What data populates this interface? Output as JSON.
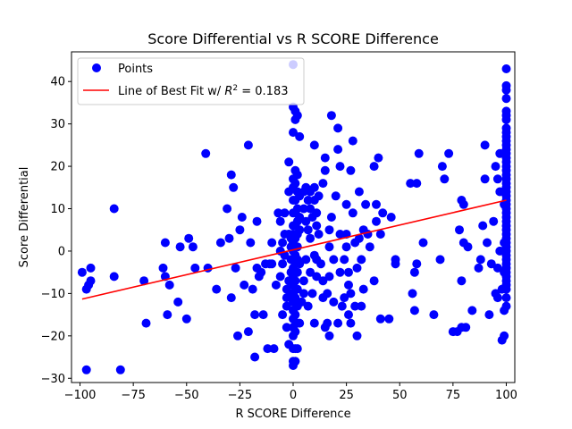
{
  "chart_data": {
    "type": "scatter",
    "title": "Score Differential vs R SCORE Difference",
    "xlabel": "R SCORE Difference",
    "ylabel": "Score Differential",
    "xlim": [
      -104,
      104
    ],
    "ylim": [
      -31,
      47
    ],
    "xticks": [
      -100,
      -75,
      -50,
      -25,
      0,
      25,
      50,
      75,
      100
    ],
    "yticks": [
      -30,
      -20,
      -10,
      0,
      10,
      20,
      30,
      40
    ],
    "grid": false,
    "legend_position": "upper-left",
    "points_color": "#0000ff",
    "fit_color": "#ff0000",
    "legend": {
      "points_label": "Points",
      "fit_prefix": "Line of Best Fit w/ ",
      "fit_r2": "R",
      "fit_suffix": " = 0.183"
    },
    "fit_line": {
      "x": [
        -99,
        100
      ],
      "y": [
        -11.3,
        12
      ]
    },
    "series": [
      {
        "name": "Points",
        "points": [
          [
            -99,
            -5
          ],
          [
            -97,
            -28
          ],
          [
            -97,
            -9
          ],
          [
            -96,
            -8
          ],
          [
            -95,
            -7
          ],
          [
            -95,
            -4
          ],
          [
            -84,
            10
          ],
          [
            -84,
            -6
          ],
          [
            -81,
            -28
          ],
          [
            -70,
            -7
          ],
          [
            -69,
            -17
          ],
          [
            -61,
            -4
          ],
          [
            -60,
            2
          ],
          [
            -60,
            -6
          ],
          [
            -59,
            -15
          ],
          [
            -58,
            -8
          ],
          [
            -54,
            -12
          ],
          [
            -53,
            1
          ],
          [
            -50,
            -16
          ],
          [
            -49,
            3
          ],
          [
            -47,
            1
          ],
          [
            -46,
            -4
          ],
          [
            -41,
            23
          ],
          [
            -40,
            -4
          ],
          [
            -36,
            -9
          ],
          [
            -34,
            2
          ],
          [
            -31,
            10
          ],
          [
            -30,
            3
          ],
          [
            -29,
            -11
          ],
          [
            -29,
            18
          ],
          [
            -28,
            15
          ],
          [
            -27,
            -4
          ],
          [
            -26,
            -20
          ],
          [
            -25,
            5
          ],
          [
            -24,
            8
          ],
          [
            -23,
            -8
          ],
          [
            -21,
            25
          ],
          [
            -21,
            -19
          ],
          [
            -20,
            2
          ],
          [
            -19,
            -9
          ],
          [
            -18,
            -15
          ],
          [
            -18,
            -25
          ],
          [
            -17,
            7
          ],
          [
            -17,
            -4
          ],
          [
            -16,
            -6
          ],
          [
            -15,
            -5
          ],
          [
            -14,
            -15
          ],
          [
            -13,
            -3
          ],
          [
            -12,
            -23
          ],
          [
            -11,
            -3
          ],
          [
            -10,
            -3
          ],
          [
            -10,
            2
          ],
          [
            -9,
            -23
          ],
          [
            -8,
            -8
          ],
          [
            -7,
            9
          ],
          [
            -6,
            0
          ],
          [
            -6,
            -6
          ],
          [
            -6,
            7
          ],
          [
            -5,
            -15
          ],
          [
            -5,
            2
          ],
          [
            -5,
            -3
          ],
          [
            -4,
            9
          ],
          [
            -4,
            -1
          ],
          [
            -4,
            4
          ],
          [
            -3,
            -9
          ],
          [
            -3,
            -11
          ],
          [
            -3,
            -13
          ],
          [
            -3,
            -18
          ],
          [
            -2,
            21
          ],
          [
            -2,
            14
          ],
          [
            -2,
            4
          ],
          [
            -2,
            -7
          ],
          [
            -2,
            -22
          ],
          [
            -1,
            3
          ],
          [
            -1,
            1
          ],
          [
            -1,
            -2
          ],
          [
            -1,
            -5
          ],
          [
            -1,
            -10
          ],
          [
            0,
            44
          ],
          [
            0,
            34
          ],
          [
            0,
            28
          ],
          [
            0,
            17
          ],
          [
            0,
            15
          ],
          [
            0,
            12
          ],
          [
            0,
            9
          ],
          [
            0,
            6
          ],
          [
            0,
            4
          ],
          [
            0,
            2
          ],
          [
            0,
            0
          ],
          [
            0,
            -2
          ],
          [
            0,
            -4
          ],
          [
            0,
            -6
          ],
          [
            0,
            -8
          ],
          [
            0,
            -10
          ],
          [
            0,
            -12
          ],
          [
            0,
            -14
          ],
          [
            0,
            -16
          ],
          [
            0,
            -18
          ],
          [
            0,
            -20
          ],
          [
            0,
            -23
          ],
          [
            0,
            -26
          ],
          [
            0,
            -27
          ],
          [
            1,
            33
          ],
          [
            1,
            31
          ],
          [
            1,
            19
          ],
          [
            1,
            16
          ],
          [
            1,
            12
          ],
          [
            1,
            9
          ],
          [
            1,
            6
          ],
          [
            1,
            3
          ],
          [
            1,
            -1
          ],
          [
            1,
            -3
          ],
          [
            1,
            -7
          ],
          [
            1,
            -11
          ],
          [
            1,
            -15
          ],
          [
            1,
            -19
          ],
          [
            1,
            -23
          ],
          [
            1,
            -26
          ],
          [
            2,
            32
          ],
          [
            2,
            18
          ],
          [
            2,
            14
          ],
          [
            2,
            10
          ],
          [
            2,
            7
          ],
          [
            2,
            4
          ],
          [
            2,
            1
          ],
          [
            2,
            -2
          ],
          [
            2,
            -5
          ],
          [
            2,
            -9
          ],
          [
            2,
            -13
          ],
          [
            2,
            -17
          ],
          [
            2,
            -23
          ],
          [
            3,
            27
          ],
          [
            3,
            13
          ],
          [
            3,
            8
          ],
          [
            3,
            5
          ],
          [
            3,
            -3
          ],
          [
            3,
            -17
          ],
          [
            4,
            -12
          ],
          [
            5,
            -10
          ],
          [
            5,
            10
          ],
          [
            5,
            14
          ],
          [
            5,
            -7
          ],
          [
            6,
            7
          ],
          [
            6,
            15
          ],
          [
            6,
            -2
          ],
          [
            7,
            5
          ],
          [
            7,
            12
          ],
          [
            7,
            -13
          ],
          [
            8,
            10
          ],
          [
            8,
            14
          ],
          [
            8,
            -5
          ],
          [
            8,
            3
          ],
          [
            9,
            8
          ],
          [
            9,
            -10
          ],
          [
            10,
            25
          ],
          [
            10,
            15
          ],
          [
            10,
            12
          ],
          [
            10,
            -1
          ],
          [
            10,
            -17
          ],
          [
            11,
            6
          ],
          [
            11,
            9
          ],
          [
            11,
            -2
          ],
          [
            11,
            -6
          ],
          [
            12,
            4
          ],
          [
            12,
            13
          ],
          [
            13,
            -3
          ],
          [
            14,
            16
          ],
          [
            14,
            -7
          ],
          [
            14,
            -11
          ],
          [
            15,
            -18
          ],
          [
            15,
            19
          ],
          [
            15,
            22
          ],
          [
            16,
            -17
          ],
          [
            16,
            -10
          ],
          [
            17,
            -6
          ],
          [
            17,
            -20
          ],
          [
            17,
            1
          ],
          [
            17,
            5
          ],
          [
            18,
            32
          ],
          [
            18,
            8
          ],
          [
            19,
            -12
          ],
          [
            19,
            -2
          ],
          [
            20,
            13
          ],
          [
            21,
            -17
          ],
          [
            21,
            24
          ],
          [
            21,
            29
          ],
          [
            22,
            20
          ],
          [
            22,
            4
          ],
          [
            22,
            -5
          ],
          [
            23,
            -13
          ],
          [
            24,
            -11
          ],
          [
            24,
            -2
          ],
          [
            25,
            11
          ],
          [
            25,
            4
          ],
          [
            25,
            1
          ],
          [
            26,
            -5
          ],
          [
            26,
            -8
          ],
          [
            26,
            -15
          ],
          [
            27,
            19
          ],
          [
            27,
            -10
          ],
          [
            27,
            -17
          ],
          [
            28,
            9
          ],
          [
            28,
            26
          ],
          [
            29,
            2
          ],
          [
            29,
            -13
          ],
          [
            30,
            -20
          ],
          [
            30,
            -4
          ],
          [
            31,
            14
          ],
          [
            31,
            3
          ],
          [
            32,
            -13
          ],
          [
            32,
            -2
          ],
          [
            33,
            -9
          ],
          [
            33,
            5
          ],
          [
            34,
            11
          ],
          [
            35,
            4
          ],
          [
            36,
            1
          ],
          [
            38,
            -7
          ],
          [
            38,
            20
          ],
          [
            39,
            11
          ],
          [
            39,
            7
          ],
          [
            40,
            22
          ],
          [
            41,
            4
          ],
          [
            41,
            -16
          ],
          [
            42,
            9
          ],
          [
            45,
            -16
          ],
          [
            46,
            8
          ],
          [
            48,
            -3
          ],
          [
            48,
            -2
          ],
          [
            55,
            16
          ],
          [
            56,
            -10
          ],
          [
            57,
            -5
          ],
          [
            57,
            -14
          ],
          [
            58,
            -3
          ],
          [
            58,
            16
          ],
          [
            59,
            23
          ],
          [
            61,
            2
          ],
          [
            66,
            -15
          ],
          [
            69,
            -2
          ],
          [
            70,
            20
          ],
          [
            71,
            17
          ],
          [
            73,
            23
          ],
          [
            75,
            -19
          ],
          [
            77,
            -19
          ],
          [
            78,
            5
          ],
          [
            79,
            12
          ],
          [
            79,
            -7
          ],
          [
            79,
            -18
          ],
          [
            80,
            11
          ],
          [
            80,
            2
          ],
          [
            81,
            -18
          ],
          [
            82,
            1
          ],
          [
            84,
            -14
          ],
          [
            87,
            -4
          ],
          [
            88,
            -2
          ],
          [
            89,
            6
          ],
          [
            90,
            17
          ],
          [
            90,
            25
          ],
          [
            91,
            2
          ],
          [
            92,
            -15
          ],
          [
            93,
            -3
          ],
          [
            94,
            7
          ],
          [
            95,
            20
          ],
          [
            95,
            -10
          ],
          [
            96,
            17
          ],
          [
            96,
            -11
          ],
          [
            96,
            -4
          ],
          [
            97,
            0
          ],
          [
            97,
            14
          ],
          [
            97,
            23
          ],
          [
            98,
            -9
          ],
          [
            98,
            -21
          ],
          [
            99,
            -20
          ],
          [
            99,
            -14
          ],
          [
            99,
            -5
          ],
          [
            99,
            2
          ],
          [
            99,
            11
          ],
          [
            100,
            43
          ],
          [
            100,
            39
          ],
          [
            100,
            38
          ],
          [
            100,
            36
          ],
          [
            100,
            33
          ],
          [
            100,
            32
          ],
          [
            100,
            31
          ],
          [
            100,
            29
          ],
          [
            100,
            28
          ],
          [
            100,
            27
          ],
          [
            100,
            26
          ],
          [
            100,
            25
          ],
          [
            100,
            24
          ],
          [
            100,
            23
          ],
          [
            100,
            22
          ],
          [
            100,
            21
          ],
          [
            100,
            20
          ],
          [
            100,
            19
          ],
          [
            100,
            18
          ],
          [
            100,
            17
          ],
          [
            100,
            16
          ],
          [
            100,
            15
          ],
          [
            100,
            14
          ],
          [
            100,
            13
          ],
          [
            100,
            12
          ],
          [
            100,
            11
          ],
          [
            100,
            10
          ],
          [
            100,
            9
          ],
          [
            100,
            8
          ],
          [
            100,
            7
          ],
          [
            100,
            6
          ],
          [
            100,
            5
          ],
          [
            100,
            4
          ],
          [
            100,
            3
          ],
          [
            100,
            2
          ],
          [
            100,
            1
          ],
          [
            100,
            0
          ],
          [
            100,
            -1
          ],
          [
            100,
            -2
          ],
          [
            100,
            -3
          ],
          [
            100,
            -4
          ],
          [
            100,
            -5
          ],
          [
            100,
            -6
          ],
          [
            100,
            -7
          ],
          [
            100,
            -8
          ],
          [
            100,
            -9
          ],
          [
            100,
            -11
          ],
          [
            100,
            -13
          ]
        ]
      }
    ]
  }
}
